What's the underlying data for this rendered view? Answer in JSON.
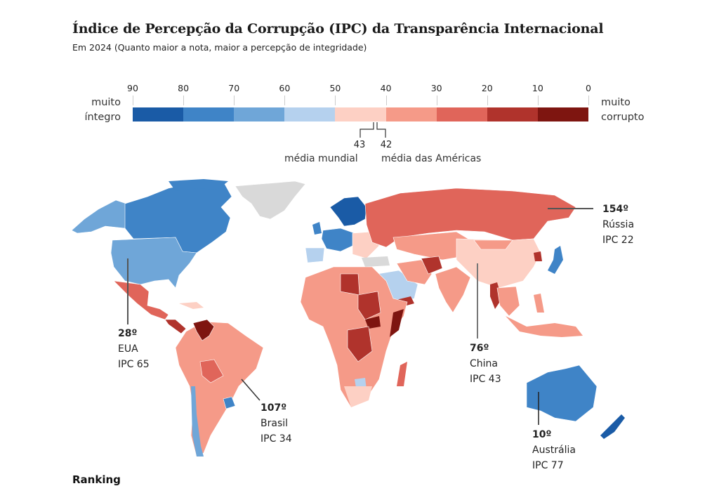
{
  "header": {
    "title": "Índice de Percepção da Corrupção (IPC) da Transparência Internacional",
    "subtitle": "Em 2024 (Quanto maior a nota, maior a percepção de integridade)"
  },
  "legend": {
    "ticks": [
      "90",
      "80",
      "70",
      "60",
      "50",
      "40",
      "30",
      "20",
      "10",
      "0"
    ],
    "left_label_line1": "muito",
    "left_label_line2": "íntegro",
    "right_label_line1": "muito",
    "right_label_line2": "corrupto",
    "bins": [
      {
        "range": "80-90",
        "color": "#1a5ba6"
      },
      {
        "range": "70-80",
        "color": "#3f84c7"
      },
      {
        "range": "60-70",
        "color": "#6fa6d8"
      },
      {
        "range": "50-60",
        "color": "#b5d1ee"
      },
      {
        "range": "40-50",
        "color": "#fdd0c4"
      },
      {
        "range": "30-40",
        "color": "#f59a88"
      },
      {
        "range": "20-30",
        "color": "#e0655a"
      },
      {
        "range": "10-20",
        "color": "#b0332c"
      },
      {
        "range": "0-10",
        "color": "#7e1510"
      }
    ],
    "world_avg_value": "43",
    "world_avg_label": "média mundial",
    "americas_avg_value": "42",
    "americas_avg_label": "média das Américas",
    "no_data_color": "#d9d9d9"
  },
  "annotations": {
    "russia": {
      "rank": "154º",
      "name": "Rússia",
      "score": "IPC 22"
    },
    "usa": {
      "rank": "28º",
      "name": "EUA",
      "score": "IPC 65"
    },
    "brazil": {
      "rank": "107º",
      "name": "Brasil",
      "score": "IPC 34"
    },
    "china": {
      "rank": "76º",
      "name": "China",
      "score": "IPC 43"
    },
    "australia": {
      "rank": "10º",
      "name": "Austrália",
      "score": "IPC 77"
    }
  },
  "footer": {
    "text": "Ranking"
  },
  "chart_data": {
    "type": "choropleth",
    "title": "Índice de Percepção da Corrupção (IPC) da Transparência Internacional",
    "subtitle": "Em 2024 (Quanto maior a nota, maior a percepção de integridade)",
    "scale": {
      "min": 0,
      "max": 90,
      "step": 10,
      "direction": "high=blue (íntegro), low=red (corrupto)"
    },
    "highlighted": [
      {
        "country": "Rússia",
        "rank": 154,
        "score": 22
      },
      {
        "country": "EUA",
        "rank": 28,
        "score": 65
      },
      {
        "country": "Brasil",
        "rank": 107,
        "score": 34
      },
      {
        "country": "China",
        "rank": 76,
        "score": 43
      },
      {
        "country": "Austrália",
        "rank": 10,
        "score": 77
      }
    ],
    "averages": [
      {
        "label": "média mundial",
        "value": 43
      },
      {
        "label": "média das Américas",
        "value": 42
      }
    ]
  }
}
